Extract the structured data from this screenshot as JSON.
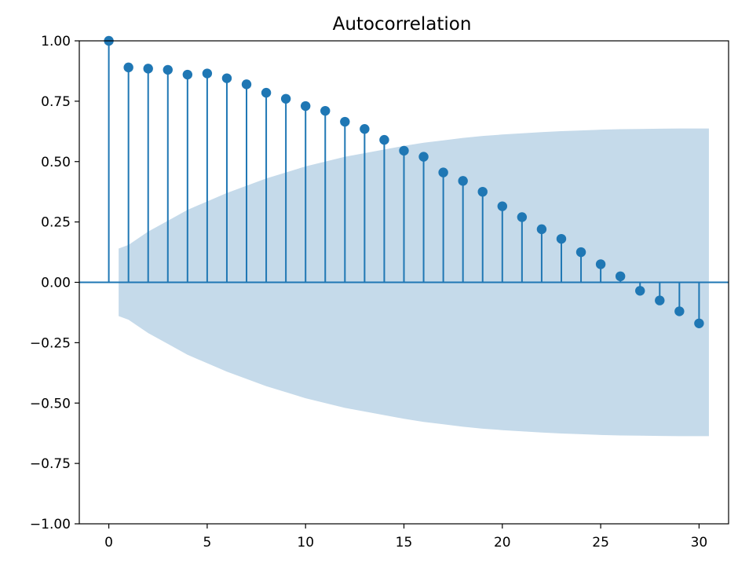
{
  "chart_data": {
    "type": "stem",
    "title": "Autocorrelation",
    "xlabel": "",
    "ylabel": "",
    "xlim": [
      -1.5,
      31.5
    ],
    "ylim": [
      -1.0,
      1.0
    ],
    "x_ticks": [
      0,
      5,
      10,
      15,
      20,
      25,
      30
    ],
    "x_tick_labels": [
      "0",
      "5",
      "10",
      "15",
      "20",
      "25",
      "30"
    ],
    "y_ticks": [
      1.0,
      0.75,
      0.5,
      0.25,
      0.0,
      -0.25,
      -0.5,
      -0.75,
      -1.0
    ],
    "y_tick_labels": [
      "1.00",
      "0.75",
      "0.50",
      "0.25",
      "0.00",
      "−0.25",
      "−0.50",
      "−0.75",
      "−1.00"
    ],
    "grid": false,
    "colors": {
      "stem": "#1f77b4",
      "confidence_band": "#c5daea",
      "axis": "#000000"
    },
    "lags": [
      0,
      1,
      2,
      3,
      4,
      5,
      6,
      7,
      8,
      9,
      10,
      11,
      12,
      13,
      14,
      15,
      16,
      17,
      18,
      19,
      20,
      21,
      22,
      23,
      24,
      25,
      26,
      27,
      28,
      29,
      30
    ],
    "values": [
      1.0,
      0.89,
      0.885,
      0.88,
      0.86,
      0.865,
      0.845,
      0.82,
      0.785,
      0.76,
      0.73,
      0.71,
      0.665,
      0.635,
      0.59,
      0.545,
      0.52,
      0.455,
      0.42,
      0.375,
      0.315,
      0.27,
      0.22,
      0.18,
      0.125,
      0.075,
      0.025,
      -0.035,
      -0.075,
      -0.12,
      -0.17
    ],
    "confidence_interval": {
      "lags": [
        0.5,
        1,
        2,
        3,
        4,
        5,
        6,
        7,
        8,
        9,
        10,
        11,
        12,
        13,
        14,
        15,
        16,
        17,
        18,
        19,
        20,
        21,
        22,
        23,
        24,
        25,
        26,
        27,
        28,
        29,
        30.5
      ],
      "upper": [
        0.14,
        0.155,
        0.21,
        0.255,
        0.3,
        0.335,
        0.37,
        0.4,
        0.43,
        0.455,
        0.48,
        0.5,
        0.52,
        0.535,
        0.55,
        0.565,
        0.578,
        0.588,
        0.598,
        0.606,
        0.612,
        0.617,
        0.622,
        0.626,
        0.629,
        0.632,
        0.634,
        0.635,
        0.636,
        0.637,
        0.637
      ],
      "lower": [
        -0.14,
        -0.155,
        -0.21,
        -0.255,
        -0.3,
        -0.335,
        -0.37,
        -0.4,
        -0.43,
        -0.455,
        -0.48,
        -0.5,
        -0.52,
        -0.535,
        -0.55,
        -0.565,
        -0.578,
        -0.588,
        -0.598,
        -0.606,
        -0.612,
        -0.617,
        -0.622,
        -0.626,
        -0.629,
        -0.632,
        -0.634,
        -0.635,
        -0.636,
        -0.637,
        -0.637
      ]
    }
  }
}
